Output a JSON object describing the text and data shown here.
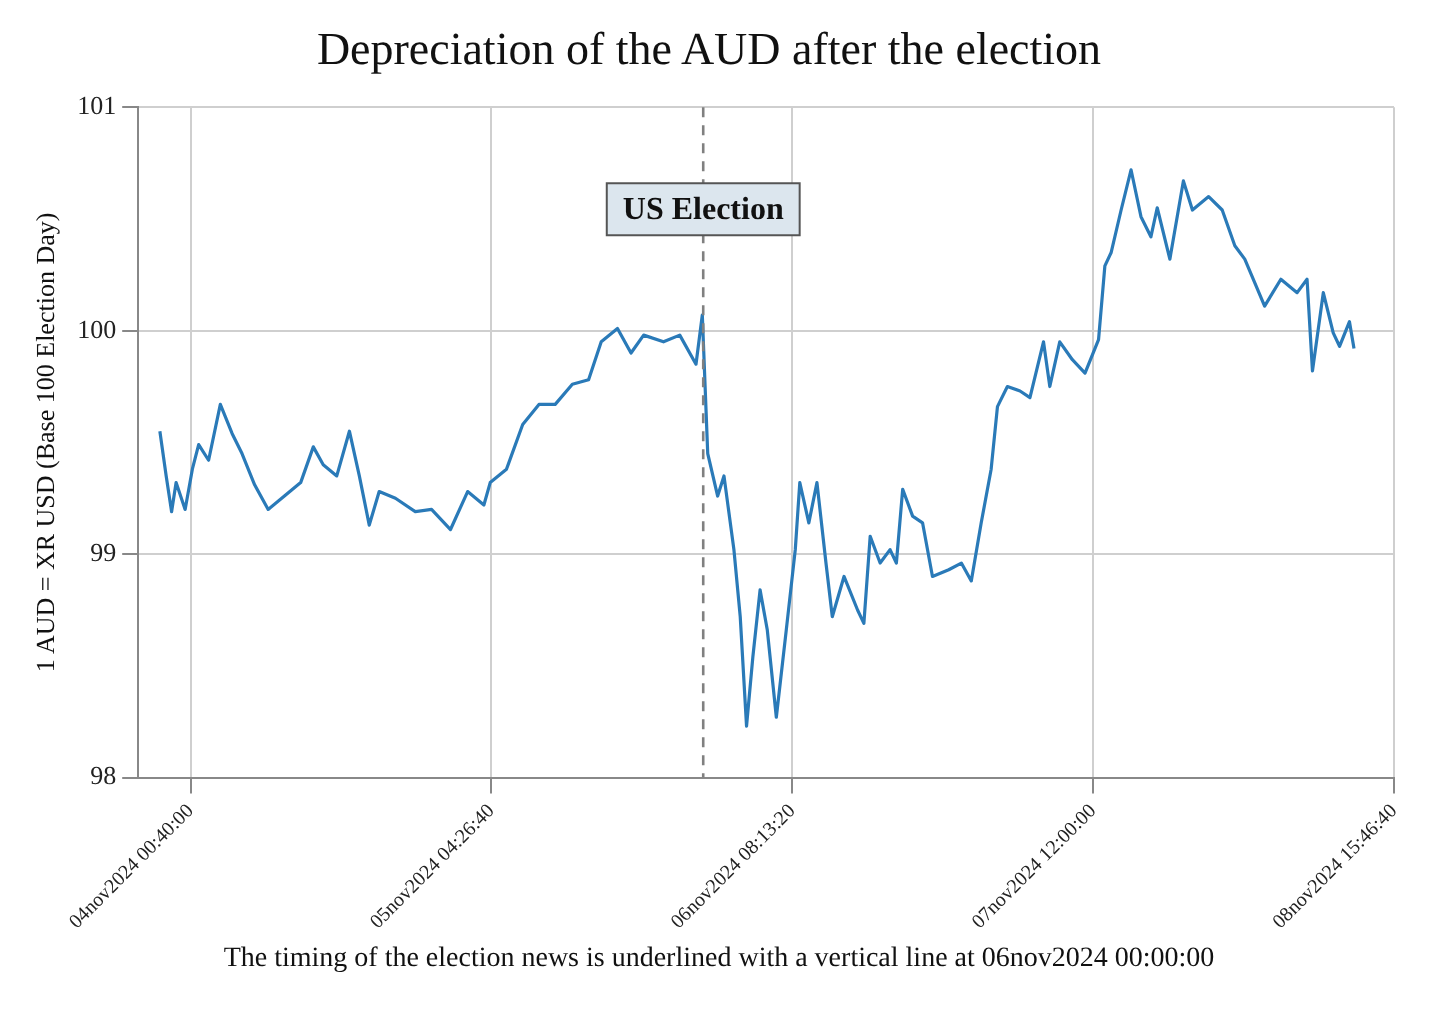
{
  "chart_data": {
    "type": "line",
    "title": "Depreciation of the AUD after the election",
    "ylabel": "1 AUD = XR USD (Base 100 Election Day)",
    "x": [
      "2024-11-03T21:50",
      "2024-11-03T22:25",
      "2024-11-03T22:55",
      "2024-11-03T23:20",
      "2024-11-04T00:10",
      "2024-11-04T00:50",
      "2024-11-04T01:25",
      "2024-11-04T02:20",
      "2024-11-04T03:25",
      "2024-11-04T04:30",
      "2024-11-04T05:25",
      "2024-11-04T06:35",
      "2024-11-04T07:50",
      "2024-11-04T09:20",
      "2024-11-04T10:50",
      "2024-11-04T12:00",
      "2024-11-04T12:55",
      "2024-11-04T14:10",
      "2024-11-04T15:20",
      "2024-11-04T16:15",
      "2024-11-04T17:10",
      "2024-11-04T18:05",
      "2024-11-04T19:35",
      "2024-11-04T21:25",
      "2024-11-04T22:55",
      "2024-11-05T00:40",
      "2024-11-05T02:15",
      "2024-11-05T03:45",
      "2024-11-05T04:20",
      "2024-11-05T05:50",
      "2024-11-05T07:20",
      "2024-11-05T08:50",
      "2024-11-05T10:20",
      "2024-11-05T11:55",
      "2024-11-05T13:25",
      "2024-11-05T14:35",
      "2024-11-05T16:05",
      "2024-11-05T17:20",
      "2024-11-05T18:30",
      "2024-11-05T20:20",
      "2024-11-05T21:50",
      "2024-11-05T23:20",
      "2024-11-05T23:55",
      "2024-11-06T00:25",
      "2024-11-06T01:20",
      "2024-11-06T01:55",
      "2024-11-06T02:50",
      "2024-11-06T03:25",
      "2024-11-06T04:00",
      "2024-11-06T04:35",
      "2024-11-06T05:15",
      "2024-11-06T05:55",
      "2024-11-06T06:45",
      "2024-11-06T07:40",
      "2024-11-06T08:30",
      "2024-11-06T08:55",
      "2024-11-06T09:45",
      "2024-11-06T10:30",
      "2024-11-06T11:20",
      "2024-11-06T11:55",
      "2024-11-06T13:00",
      "2024-11-06T14:15",
      "2024-11-06T14:50",
      "2024-11-06T15:25",
      "2024-11-06T16:20",
      "2024-11-06T17:15",
      "2024-11-06T17:50",
      "2024-11-06T18:25",
      "2024-11-06T19:20",
      "2024-11-06T20:15",
      "2024-11-06T21:10",
      "2024-11-06T22:40",
      "2024-11-06T23:50",
      "2024-11-07T00:45",
      "2024-11-07T01:40",
      "2024-11-07T02:35",
      "2024-11-07T03:10",
      "2024-11-07T04:05",
      "2024-11-07T05:15",
      "2024-11-07T06:10",
      "2024-11-07T07:25",
      "2024-11-07T08:00",
      "2024-11-07T08:55",
      "2024-11-07T10:05",
      "2024-11-07T11:15",
      "2024-11-07T12:30",
      "2024-11-07T13:05",
      "2024-11-07T13:40",
      "2024-11-07T14:35",
      "2024-11-07T15:30",
      "2024-11-07T16:25",
      "2024-11-07T17:20",
      "2024-11-07T17:55",
      "2024-11-07T19:05",
      "2024-11-07T20:20",
      "2024-11-07T21:10",
      "2024-11-07T22:40",
      "2024-11-07T23:55",
      "2024-11-08T01:05",
      "2024-11-08T02:00",
      "2024-11-08T03:50",
      "2024-11-08T05:20",
      "2024-11-08T06:50",
      "2024-11-08T07:45",
      "2024-11-08T08:15",
      "2024-11-08T09:15",
      "2024-11-08T10:10",
      "2024-11-08T10:45",
      "2024-11-08T11:40",
      "2024-11-08T12:05"
    ],
    "series": [
      {
        "color": "#2a7ab8",
        "values": [
          99.55,
          99.35,
          99.19,
          99.32,
          99.2,
          99.38,
          99.49,
          99.42,
          99.67,
          99.54,
          99.45,
          99.31,
          99.2,
          99.26,
          99.32,
          99.48,
          99.4,
          99.35,
          99.55,
          99.35,
          99.13,
          99.28,
          99.25,
          99.19,
          99.2,
          99.11,
          99.28,
          99.22,
          99.32,
          99.38,
          99.58,
          99.67,
          99.67,
          99.76,
          99.78,
          99.95,
          100.01,
          99.9,
          99.98,
          99.95,
          99.98,
          99.85,
          100.07,
          99.45,
          99.26,
          99.35,
          99.02,
          98.72,
          98.23,
          98.54,
          98.84,
          98.66,
          98.27,
          98.66,
          99.02,
          99.32,
          99.14,
          99.32,
          98.96,
          98.72,
          98.9,
          98.75,
          98.69,
          99.08,
          98.96,
          99.02,
          98.96,
          99.29,
          99.17,
          99.14,
          98.9,
          98.93,
          98.96,
          98.88,
          99.14,
          99.38,
          99.66,
          99.75,
          99.73,
          99.7,
          99.95,
          99.75,
          99.95,
          99.87,
          99.81,
          99.96,
          100.29,
          100.35,
          100.54,
          100.72,
          100.51,
          100.42,
          100.55,
          100.32,
          100.67,
          100.54,
          100.6,
          100.54,
          100.38,
          100.32,
          100.11,
          100.23,
          100.17,
          100.23,
          99.82,
          100.17,
          99.99,
          99.93,
          100.04,
          99.92
        ]
      }
    ],
    "xlim": [
      "2024-11-03T19:50",
      "2024-11-08T15:46:40"
    ],
    "xticks": [
      {
        "value": "2024-11-04T00:40:00",
        "label": "04nov2024 00:40:00"
      },
      {
        "value": "2024-11-05T04:26:40",
        "label": "05nov2024 04:26:40"
      },
      {
        "value": "2024-11-06T08:13:20",
        "label": "06nov2024 08:13:20"
      },
      {
        "value": "2024-11-07T12:00:00",
        "label": "07nov2024 12:00:00"
      },
      {
        "value": "2024-11-08T15:46:40",
        "label": "08nov2024 15:46:40"
      }
    ],
    "ylim": [
      98,
      101
    ],
    "yticks": [
      98,
      99,
      100,
      101
    ],
    "grid": true,
    "legend": false,
    "marker": "none",
    "line_style": "solid",
    "ref_lines": [
      {
        "axis": "x",
        "value": "2024-11-06T00:00",
        "label": "US Election",
        "color": "#808080",
        "line_style": "dashed"
      }
    ],
    "annotations": [
      "The timing of the election news is underlined with a vertical line at 06nov2024 00:00:00"
    ]
  }
}
